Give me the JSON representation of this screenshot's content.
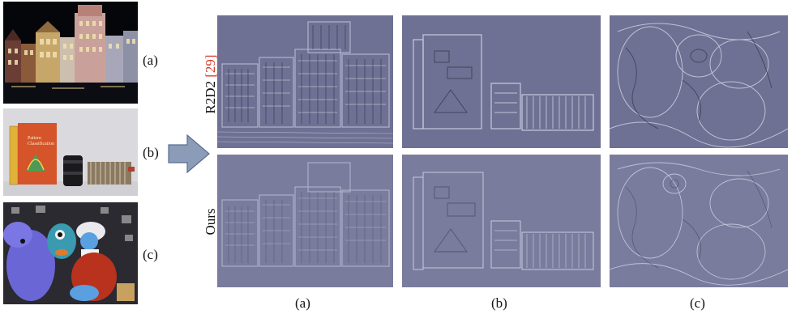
{
  "figure": {
    "input_labels": [
      "(a)",
      "(b)",
      "(c)"
    ],
    "column_labels": [
      "(a)",
      "(b)",
      "(c)"
    ],
    "rows": [
      {
        "label": "R2D2 ",
        "ref_open": "[",
        "ref_num": "29",
        "ref_close": "]"
      },
      {
        "label": "Ours"
      }
    ],
    "book_title_lines": [
      "Pattern",
      "Classification"
    ],
    "colors": {
      "map_background": "#6e7193",
      "map_background_ours": "#797c9c",
      "citation_red": "#d43c2c",
      "arrow_fill": "#8a9cb8",
      "arrow_stroke": "#5a6e90"
    }
  }
}
